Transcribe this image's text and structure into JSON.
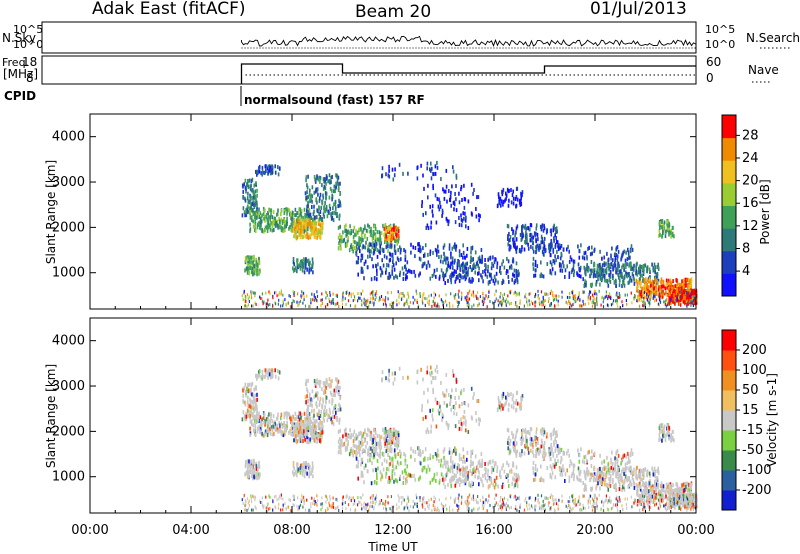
{
  "header": {
    "title": "Adak East (fitACF)",
    "beam": "Beam 20",
    "date": "01/Jul/2013"
  },
  "summary_panels": {
    "nsky_label": "N.Sky",
    "nsky_ticks": [
      "10^5",
      "10^0"
    ],
    "nsearch_label": "N.Search",
    "freq_label": "Freq.",
    "freq_unit": "[MHz]",
    "freq_ticks": [
      "18",
      "8"
    ],
    "nave_label": "Nave",
    "nave_ticks": [
      "60",
      "0"
    ],
    "cpid_label": "CPID",
    "cpid_text": "normalsound (fast) 157 RF"
  },
  "chart_data": [
    {
      "type": "heatmap",
      "quantity": "Power",
      "ylabel": "Slant Range [km]",
      "yticks": [
        1000,
        2000,
        3000,
        4000
      ],
      "ylim": [
        200,
        4500
      ],
      "xlim": [
        0,
        24
      ],
      "colorbar_label": "Power [dB]",
      "colorbar_ticks": [
        "28",
        "24",
        "20",
        "16",
        "12",
        "8",
        "4"
      ],
      "colors": [
        "#1010ff",
        "#1c3fbe",
        "#2e7a78",
        "#3fa058",
        "#9acd32",
        "#f0c020",
        "#f08a00",
        "#ff0000"
      ],
      "data_start_hour": 6
    },
    {
      "type": "heatmap",
      "quantity": "Velocity",
      "ylabel": "Slant Range [km]",
      "xlabel": "Time UT",
      "yticks": [
        1000,
        2000,
        3000,
        4000
      ],
      "xticks": [
        "00:00",
        "04:00",
        "08:00",
        "12:00",
        "16:00",
        "20:00",
        "00:00"
      ],
      "ylim": [
        200,
        4500
      ],
      "xlim": [
        0,
        24
      ],
      "colorbar_label": "Velocity [m s-1]",
      "colorbar_ticks": [
        "200",
        "100",
        "50",
        "15",
        "-15",
        "-50",
        "-100",
        "-200"
      ],
      "colors": [
        "#1020d0",
        "#2a60a0",
        "#3a8a4a",
        "#7ad040",
        "#c8c8c8",
        "#f0c060",
        "#f09020",
        "#ff5010",
        "#ff0000"
      ],
      "data_start_hour": 6
    }
  ]
}
